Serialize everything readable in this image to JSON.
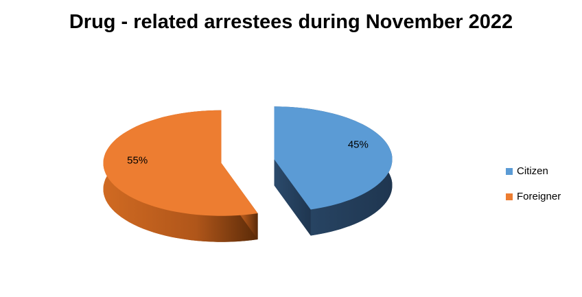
{
  "chart_data": {
    "type": "pie",
    "title": "Drug - related arrestees during November 2022",
    "categories": [
      "Citizen",
      "Foreigner"
    ],
    "values": [
      45,
      55
    ],
    "value_labels": [
      "45%",
      "55%"
    ],
    "colors": [
      "#5b9bd5",
      "#ed7d31"
    ],
    "legend": "right",
    "exploded": true,
    "three_d": true
  }
}
